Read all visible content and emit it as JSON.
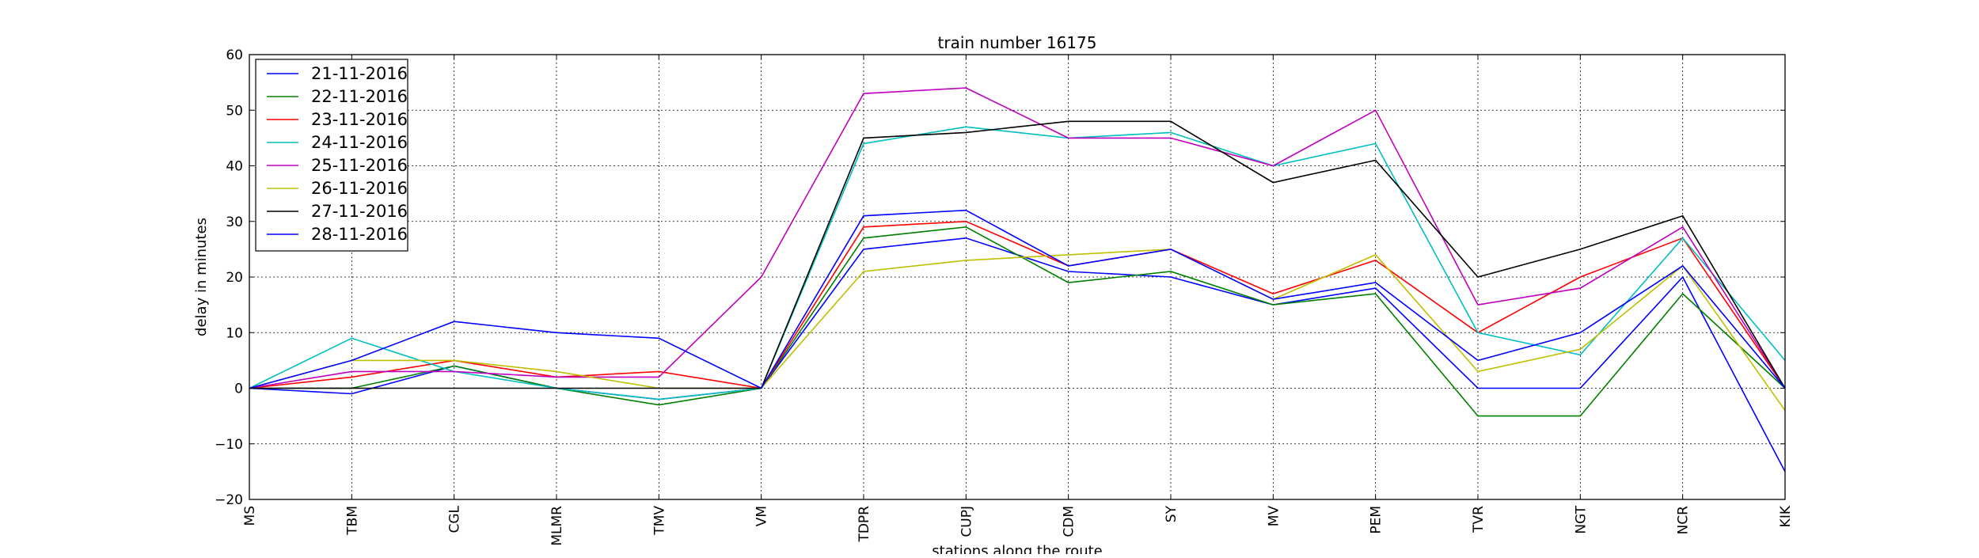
{
  "chart_data": {
    "type": "line",
    "title": "train number 16175",
    "xlabel": "stations along the route",
    "ylabel": "delay in minutes",
    "ylim": [
      -20,
      60
    ],
    "yticks": [
      -20,
      -10,
      0,
      10,
      20,
      30,
      40,
      50,
      60
    ],
    "y_tick_labels": [
      "−20",
      "−10",
      "0",
      "10",
      "20",
      "30",
      "40",
      "50",
      "60"
    ],
    "grid": true,
    "legend_position": "top-left",
    "categories": [
      "MS",
      "TBM",
      "CGL",
      "MLMR",
      "TMV",
      "VM",
      "TDPR",
      "CUPJ",
      "CDM",
      "SY",
      "MV",
      "PEM",
      "TVR",
      "NGT",
      "NCR",
      "KIK"
    ],
    "series": [
      {
        "name": "21-11-2016",
        "color": "#0000ff",
        "values": [
          0,
          -1,
          4,
          0,
          -2,
          0,
          25,
          27,
          21,
          20,
          15,
          18,
          0,
          0,
          20,
          -15
        ]
      },
      {
        "name": "22-11-2016",
        "color": "#008000",
        "values": [
          0,
          0,
          4,
          0,
          -3,
          0,
          27,
          29,
          19,
          21,
          15,
          17,
          -5,
          -5,
          17,
          0
        ]
      },
      {
        "name": "23-11-2016",
        "color": "#ff0000",
        "values": [
          0,
          2,
          5,
          2,
          3,
          0,
          29,
          30,
          22,
          25,
          17,
          23,
          10,
          20,
          27,
          0
        ]
      },
      {
        "name": "24-11-2016",
        "color": "#00bfbf",
        "values": [
          0,
          9,
          3,
          0,
          -2,
          0,
          44,
          47,
          45,
          46,
          40,
          44,
          10,
          6,
          27,
          5
        ]
      },
      {
        "name": "25-11-2016",
        "color": "#bf00bf",
        "values": [
          0,
          3,
          3,
          2,
          2,
          20,
          53,
          54,
          45,
          45,
          40,
          50,
          15,
          18,
          29,
          0
        ]
      },
      {
        "name": "26-11-2016",
        "color": "#bfbf00",
        "values": [
          0,
          5,
          5,
          3,
          0,
          0,
          21,
          23,
          24,
          25,
          16,
          24,
          3,
          7,
          22,
          -4
        ]
      },
      {
        "name": "27-11-2016",
        "color": "#000000",
        "values": [
          0,
          0,
          0,
          0,
          0,
          0,
          45,
          46,
          48,
          48,
          37,
          41,
          20,
          25,
          31,
          0
        ]
      },
      {
        "name": "28-11-2016",
        "color": "#0000ff",
        "values": [
          0,
          5,
          12,
          10,
          9,
          0,
          31,
          32,
          22,
          25,
          16,
          19,
          5,
          10,
          22,
          0
        ]
      }
    ]
  }
}
